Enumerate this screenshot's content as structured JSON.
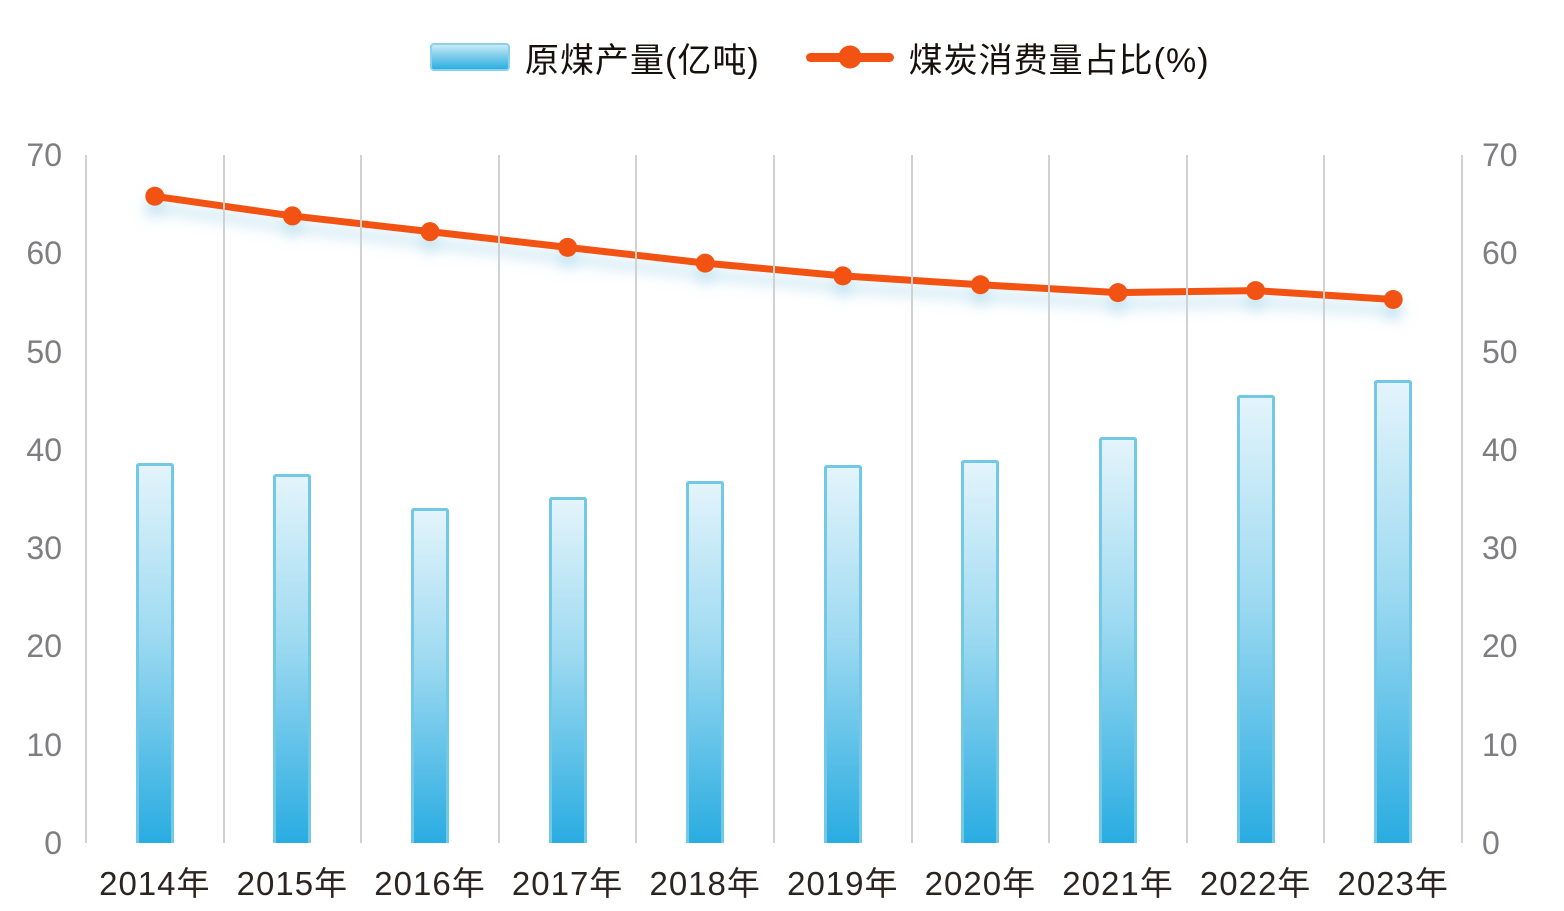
{
  "legend": {
    "items": [
      {
        "label": "原煤产量(亿吨)",
        "swatch": "bar-swatch"
      },
      {
        "label": "煤炭消费量占比(%)",
        "swatch": "line-swatch"
      }
    ]
  },
  "chart_data": {
    "type": "bar+line",
    "categories": [
      "2014年",
      "2015年",
      "2016年",
      "2017年",
      "2018年",
      "2019年",
      "2020年",
      "2021年",
      "2022年",
      "2023年"
    ],
    "series": [
      {
        "name": "原煤产量(亿吨)",
        "type": "bar",
        "axis": "left",
        "values": [
          38.7,
          37.5,
          34.1,
          35.2,
          36.8,
          38.5,
          39.0,
          41.3,
          45.6,
          47.1
        ]
      },
      {
        "name": "煤炭消费量占比(%)",
        "type": "line",
        "axis": "right",
        "values": [
          65.8,
          63.8,
          62.2,
          60.6,
          59.0,
          57.7,
          56.8,
          56.0,
          56.2,
          55.3
        ]
      }
    ],
    "title": "",
    "xlabel": "",
    "ylabel_left": "",
    "ylabel_right": "",
    "ylim": [
      0,
      70
    ],
    "yticks": [
      0,
      10,
      20,
      30,
      40,
      50,
      60,
      70
    ],
    "dual_axis": true,
    "grid": "vertical-only",
    "legend_position": "top-center",
    "colors": {
      "bar_fill_top": "#e3f4fb",
      "bar_fill_bottom": "#29ace1",
      "bar_border": "#73c9e5",
      "line": "#f25313",
      "grid": "#d1d1d1",
      "tick_text": "#7d7d82",
      "axis_label_text": "#2b2420",
      "legend_text": "#17110d"
    }
  }
}
